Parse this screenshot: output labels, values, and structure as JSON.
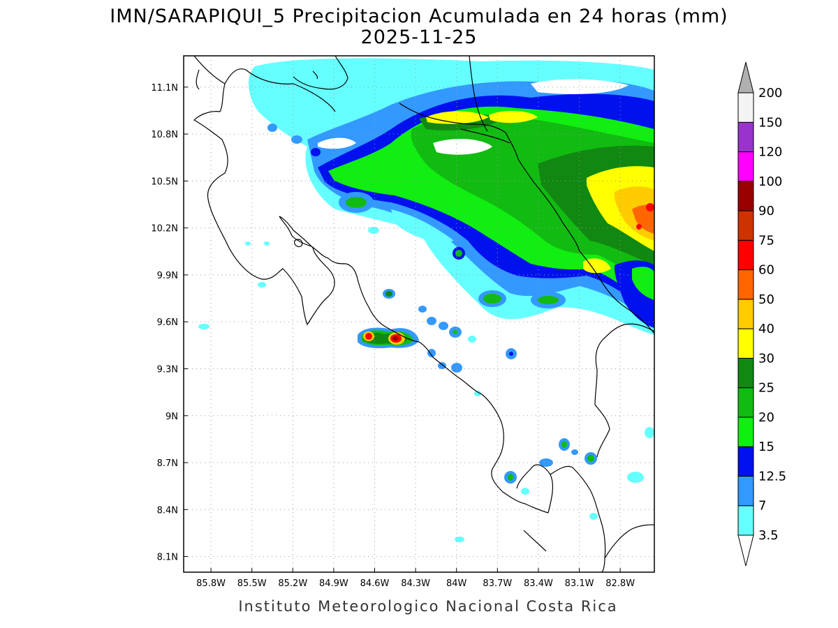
{
  "title": {
    "line1": "IMN/SARAPIQUI_5 Precipitacion Acumulada en 24 horas (mm)",
    "line2": "2025-11-25"
  },
  "footer": "Instituto Meteorologico Nacional Costa Rica",
  "axes": {
    "x_ticks": [
      "85.8W",
      "85.5W",
      "85.2W",
      "84.9W",
      "84.6W",
      "84.3W",
      "84W",
      "83.7W",
      "83.4W",
      "83.1W",
      "82.8W"
    ],
    "y_ticks": [
      "11.1N",
      "10.8N",
      "10.5N",
      "10.2N",
      "9.9N",
      "9.6N",
      "9.3N",
      "9N",
      "8.7N",
      "8.4N",
      "8.1N"
    ],
    "lon_range": [
      -86.0,
      -82.55
    ],
    "lat_range": [
      8.0,
      11.3
    ]
  },
  "colorbar": {
    "labels": [
      "3.5",
      "7",
      "12.5",
      "15",
      "20",
      "25",
      "30",
      "40",
      "50",
      "60",
      "75",
      "90",
      "100",
      "120",
      "150",
      "200"
    ],
    "colors": [
      "#66ffff",
      "#3399ff",
      "#0011ee",
      "#11ee11",
      "#11bb11",
      "#118811",
      "#ffff00",
      "#ffcc00",
      "#ff6600",
      "#ff0000",
      "#cc3300",
      "#990000",
      "#ff00ff",
      "#9933cc",
      "#f4f4f4"
    ],
    "end_colors": {
      "top": "#b0b0b0",
      "bottom": "#ffffff"
    }
  },
  "chart_data": {
    "type": "heatmap",
    "variable": "Precipitacion Acumulada en 24 horas (mm)",
    "date": "2025-11-25",
    "levels_mm": [
      3.5,
      7,
      12.5,
      15,
      20,
      25,
      30,
      40,
      50,
      60,
      75,
      90,
      100,
      120,
      150,
      200
    ],
    "grid": true,
    "legend": "right",
    "max_regions": [
      {
        "lon": -82.6,
        "lat": 10.3,
        "value_mm": 60
      },
      {
        "lon": -84.45,
        "lat": 9.5,
        "value_mm": 75
      },
      {
        "lon": -84.6,
        "lat": 9.52,
        "value_mm": 60
      },
      {
        "lon": -83.6,
        "lat": 10.9,
        "value_mm": 40
      },
      {
        "lon": -82.8,
        "lat": 10.45,
        "value_mm": 40
      }
    ]
  }
}
